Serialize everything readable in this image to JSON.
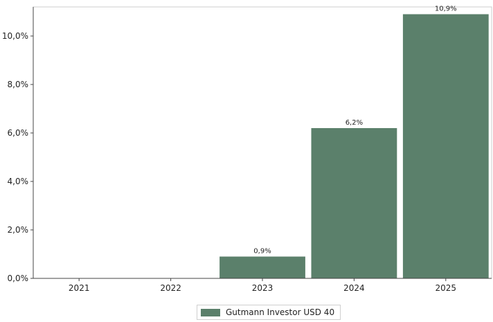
{
  "chart_data": {
    "type": "bar",
    "categories": [
      "2021",
      "2022",
      "2023",
      "2024",
      "2025"
    ],
    "series": [
      {
        "name": "Gutmann Investor USD 40",
        "values": [
          null,
          null,
          0.9,
          6.2,
          10.9
        ],
        "labels": [
          "",
          "",
          "0,9%",
          "6,2%",
          "10,9%"
        ]
      }
    ],
    "ylim": [
      0,
      11.2
    ],
    "yticks": [
      0,
      2,
      4,
      6,
      8,
      10
    ],
    "ytick_labels": [
      "0,0%",
      "2,0%",
      "4,0%",
      "6,0%",
      "8,0%",
      "10,0%"
    ],
    "unit": "%",
    "grid": false,
    "legend_position": "bottom-center",
    "colors": {
      "bar": "#5b806b",
      "axis": "#444444",
      "frame": "#cccccc"
    }
  }
}
